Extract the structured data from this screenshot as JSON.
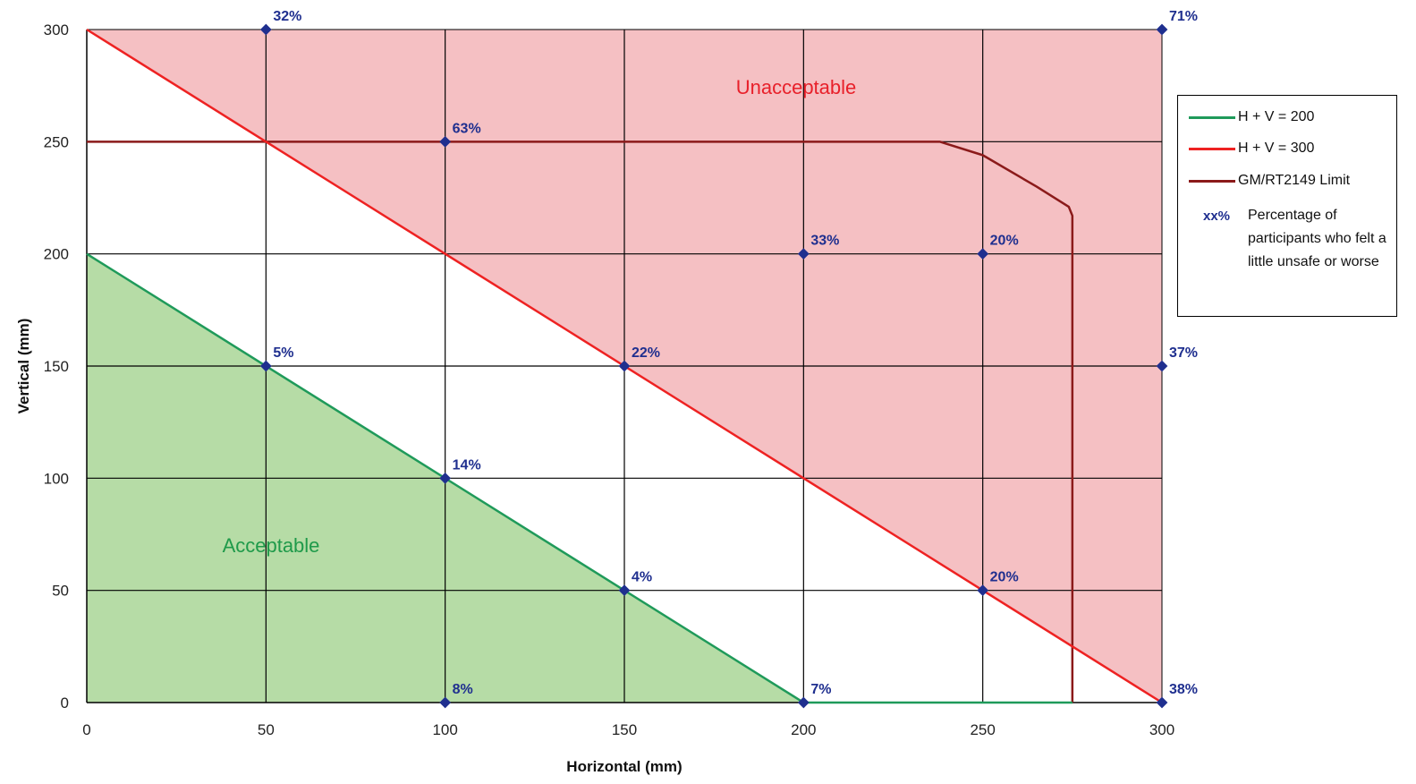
{
  "chart_data": {
    "type": "line",
    "xlabel": "Horizontal (mm)",
    "ylabel": "Vertical (mm)",
    "xlim": [
      0,
      300
    ],
    "ylim": [
      0,
      300
    ],
    "x_ticks": [
      "0",
      "50",
      "100",
      "150",
      "200",
      "250",
      "300"
    ],
    "y_ticks": [
      "0",
      "50",
      "100",
      "150",
      "200",
      "250",
      "300"
    ],
    "grid": true,
    "regions": [
      {
        "label": "Unacceptable",
        "color": "#f5c0c3",
        "label_color": "#e8202a"
      },
      {
        "label": "Acceptable",
        "color": "#b6dca6",
        "label_color": "#1f9a4a"
      }
    ],
    "series": [
      {
        "name": "H + V = 200",
        "color": "#1f9a5a",
        "points": [
          [
            0,
            200
          ],
          [
            200,
            0
          ],
          [
            275,
            0
          ]
        ]
      },
      {
        "name": "H + V = 300",
        "color": "#ee2222",
        "points": [
          [
            0,
            300
          ],
          [
            300,
            0
          ]
        ]
      },
      {
        "name": "GM/RT2149 Limit",
        "color": "#8b1a1a",
        "points": [
          [
            0,
            250
          ],
          [
            238,
            250
          ],
          [
            250,
            244
          ],
          [
            265,
            230
          ],
          [
            274,
            221
          ],
          [
            275,
            217
          ],
          [
            275,
            0
          ]
        ]
      }
    ],
    "annotated_points": [
      {
        "x": 50,
        "y": 300,
        "label": "32%"
      },
      {
        "x": 300,
        "y": 300,
        "label": "71%"
      },
      {
        "x": 100,
        "y": 250,
        "label": "63%"
      },
      {
        "x": 200,
        "y": 200,
        "label": "33%"
      },
      {
        "x": 250,
        "y": 200,
        "label": "20%"
      },
      {
        "x": 50,
        "y": 150,
        "label": "5%"
      },
      {
        "x": 150,
        "y": 150,
        "label": "22%"
      },
      {
        "x": 300,
        "y": 150,
        "label": "37%"
      },
      {
        "x": 100,
        "y": 100,
        "label": "14%"
      },
      {
        "x": 150,
        "y": 50,
        "label": "4%"
      },
      {
        "x": 250,
        "y": 50,
        "label": "20%"
      },
      {
        "x": 100,
        "y": 0,
        "label": "8%"
      },
      {
        "x": 200,
        "y": 0,
        "label": "7%"
      },
      {
        "x": 300,
        "y": 0,
        "label": "38%"
      }
    ],
    "point_color": "#1f2f8f",
    "legend": {
      "placement": "right",
      "items": [
        "H + V = 200",
        "H + V = 300",
        "GM/RT2149 Limit"
      ],
      "note_key": "xx%",
      "note_text": "Percentage of participants who felt a little unsafe or worse"
    }
  }
}
